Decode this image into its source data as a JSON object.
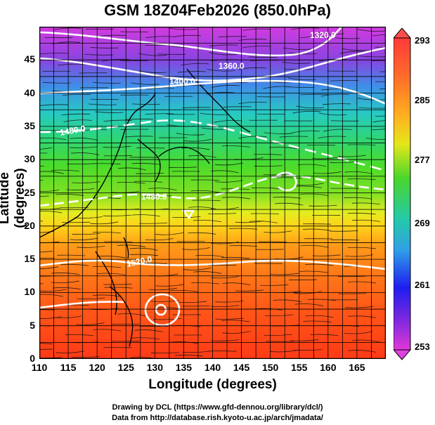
{
  "title": "GSM 18Z04Feb2026 (850.0hPa)",
  "axes": {
    "xlabel": "Longitude (degrees)",
    "ylabel": "Latitude  (degrees)",
    "x_ticks": [
      "110",
      "115",
      "120",
      "125",
      "130",
      "135",
      "140",
      "145",
      "150",
      "155",
      "160",
      "165"
    ],
    "y_ticks": [
      "0",
      "5",
      "10",
      "15",
      "20",
      "25",
      "30",
      "35",
      "40",
      "45"
    ],
    "xlim": [
      110,
      170
    ],
    "ylim": [
      0,
      50
    ]
  },
  "colorbar": {
    "ticks": [
      "293",
      "285",
      "277",
      "269",
      "261",
      "253"
    ],
    "min": 253,
    "max": 293,
    "units_hint": "temperature"
  },
  "contour_labels": [
    "1320.0",
    "1360.0",
    "1400.0",
    "1440.0",
    "1480.0",
    "1520.0"
  ],
  "footer": {
    "line1": "Drawing by DCL (https://www.gfd-dennou.org/library/dcl/)",
    "line2": "Data from http://database.rish.kyoto-u.ac.jp/arch/jmadata/"
  }
}
